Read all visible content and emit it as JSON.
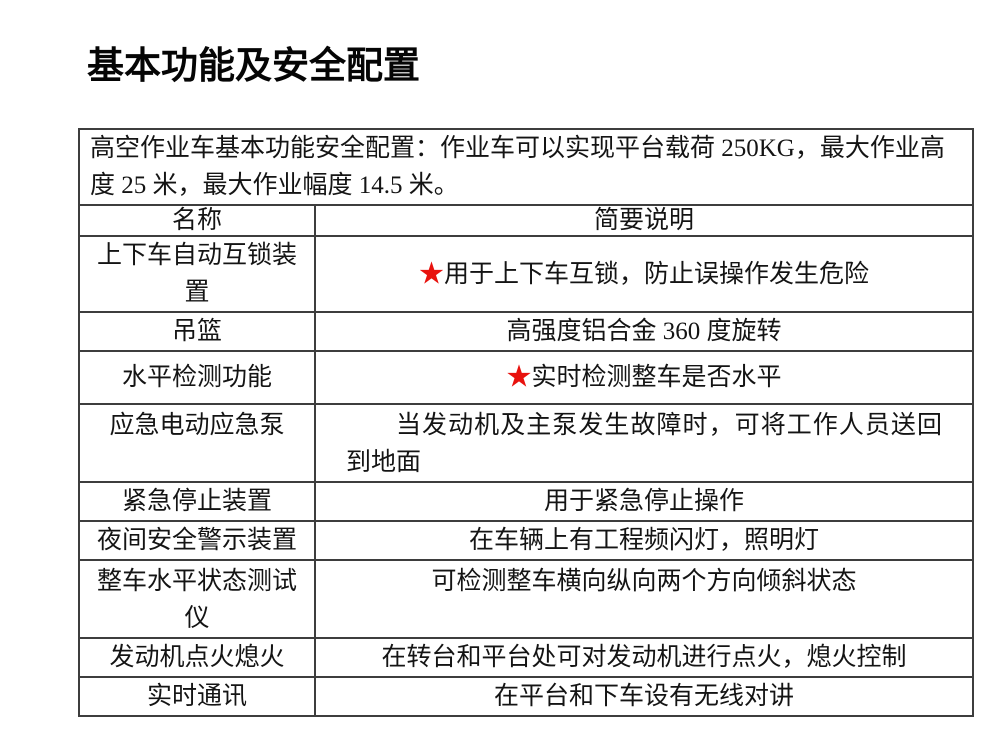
{
  "page": {
    "title": "基本功能及安全配置"
  },
  "colors": {
    "star_red": "#e8120e",
    "table_border": "#3d3d3d",
    "background": "#ffffff"
  },
  "icons": {
    "star_glyph": "★"
  },
  "table": {
    "intro": "高空作业车基本功能安全配置：作业车可以实现平台载荷 250KG，最大作业高度 25 米，最大作业幅度 14.5 米。",
    "columns": {
      "name": "名称",
      "desc": "简要说明"
    },
    "rows": [
      {
        "name": "上下车自动互锁装置",
        "star": true,
        "desc": "用于上下车互锁，防止误操作发生危险"
      },
      {
        "name": "吊篮",
        "star": false,
        "desc": "高强度铝合金 360 度旋转"
      },
      {
        "name": "水平检测功能",
        "star": true,
        "desc": "实时检测整车是否水平"
      },
      {
        "name": "应急电动应急泵",
        "star": false,
        "desc": "当发动机及主泵发生故障时，可将工作人员送回到地面"
      },
      {
        "name": "紧急停止装置",
        "star": false,
        "desc": "用于紧急停止操作"
      },
      {
        "name": "夜间安全警示装置",
        "star": false,
        "desc": "在车辆上有工程频闪灯，照明灯"
      },
      {
        "name": "整车水平状态测试仪",
        "star": false,
        "desc": "可检测整车横向纵向两个方向倾斜状态"
      },
      {
        "name": "发动机点火熄火",
        "star": false,
        "desc": "在转台和平台处可对发动机进行点火，熄火控制"
      },
      {
        "name": "实时通讯",
        "star": false,
        "desc": "在平台和下车设有无线对讲"
      }
    ]
  }
}
